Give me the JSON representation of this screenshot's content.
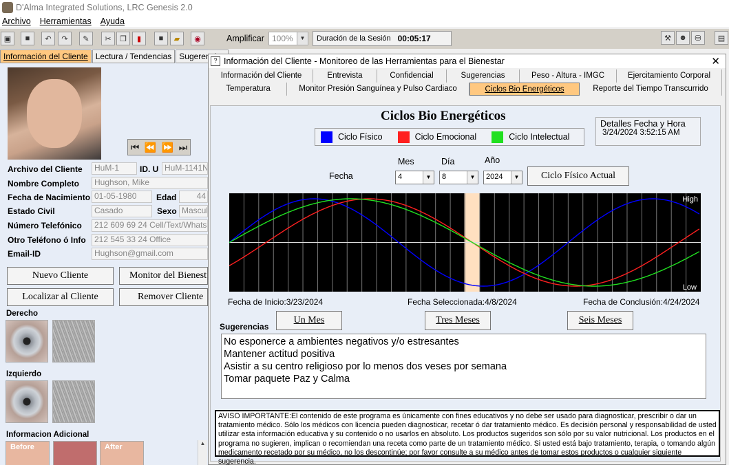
{
  "app": {
    "title": "D'Alma Integrated Solutions, LRC Genesis 2.0"
  },
  "menu": [
    "Archivo",
    "Herramientas",
    "Ayuda"
  ],
  "toolbar": {
    "amplify_label": "Amplificar",
    "amplify_value": "100%",
    "session_label": "Duración de la Sesión",
    "session_time": "00:05:17"
  },
  "left_tabs": [
    "Información del Cliente",
    "Lectura / Tendencias",
    "Sugerencias"
  ],
  "client": {
    "archive_label": "Archivo del Cliente",
    "archive_value": "HuM-1",
    "id_label": "ID. U",
    "id_value": "HuM-1141N",
    "name_label": "Nombre Completo",
    "name_value": "Hughson, Mike",
    "dob_label": "Fecha de Nacimiento",
    "dob_value": "01-05-1980",
    "age_label": "Edad",
    "age_value": "44",
    "civil_label": "Estado Civil",
    "civil_value": "Casado",
    "sex_label": "Sexo",
    "sex_value": "Mascul",
    "phone_label": "Número Telefónico",
    "phone_value": "212 609 69 24 Cell/Text/Whats",
    "phone2_label": "Otro Teléfono ó Info",
    "phone2_value": "212 545 33 24 Office",
    "email_label": "Email-ID",
    "email_value": "Hughson@gmail.com"
  },
  "left_buttons": {
    "new": "Nuevo Cliente",
    "monitor": "Monitor del Bienest",
    "locate": "Localizar al Cliente",
    "remove": "Remover Cliente"
  },
  "sections": {
    "right": "Derecho",
    "left": "Izquierdo",
    "extra": "Informacion Adicional"
  },
  "thumbs": [
    "Before",
    "",
    "After"
  ],
  "dialog": {
    "title": "Información del Cliente - Monitoreo de las Herramientas para el Bienestar",
    "tabs_row1": [
      "Información del Cliente",
      "Entrevista",
      "Confidencial",
      "Sugerencias",
      "Peso - Altura - IMGC",
      "Ejercitamiento Corporal"
    ],
    "tabs_row2": [
      "Temperatura",
      "Monitor Presión Sanguínea y Pulso Cardiaco",
      "Ciclos Bio Energéticos",
      "Reporte del Tiempo Transcurrido"
    ]
  },
  "legend": {
    "physical": "Ciclo Físico",
    "emotional": "Ciclo Emocional",
    "intellectual": "Ciclo Intelectual"
  },
  "colors": {
    "physical": "#0000ff",
    "emotional": "#ff2020",
    "intellectual": "#20e020",
    "selected_day": "#ffe0c0"
  },
  "datetime": {
    "label": "Detalles Fecha y Hora",
    "value": "3/24/2024 3:52:15 AM"
  },
  "date_inputs": {
    "fecha_label": "Fecha",
    "mes_label": "Mes",
    "dia_label": "Día",
    "ano_label": "Año",
    "mes": "4",
    "dia": "8",
    "ano": "2024",
    "current_button": "Ciclo Físico Actual"
  },
  "chart_info": {
    "start": "Fecha de Inicio:3/23/2024",
    "selected": "Fecha Seleccionada:4/8/2024",
    "end": "Fecha de Conclusión:4/24/2024"
  },
  "range_buttons": [
    "Un Mes",
    "Tres Meses",
    "Seis Meses"
  ],
  "suggestions_label": "Sugerencias",
  "suggestions": [
    "No esponerce a ambientes negativos y/o estresantes",
    "Mantener actitud positiva",
    "Asistir a su centro religioso por lo menos dos veses por semana",
    "Tomar paquete Paz y Calma"
  ],
  "aviso": "AVISO IMPORTANTE:El contenido de este programa es únicamente con fines educativos y no debe ser usado para diagnosticar, prescribir o dar un tratamiento médico. Sólo los médicos con licencia pueden diagnosticar, recetar ó dar tratamiento médico. Es decisión personal y responsabilidad de usted utilizar esta información educativa y su contenido o no usarlos en absoluto. Los productos sugeridos son sólo por su valor nutricional. Los productos en el programa no sugieren, implican o recomiendan una receta como parte de un tratamiento médico. Si usted está bajo tratamiento, terapia, o tomando algún medicamento recetado por su médico, no los descontinúe; por favor consulte a su médico antes de tomar estos productos o cualquier siguiente sugerencia.",
  "chart_data": {
    "type": "line",
    "title": "Ciclos Bio Energéticos",
    "x_range_days": [
      0,
      32
    ],
    "x_start_date": "3/23/2024",
    "x_end_date": "4/24/2024",
    "selected_day": 16,
    "ylim": [
      -1,
      1
    ],
    "y_tick_labels": [
      "Low",
      "High"
    ],
    "series": [
      {
        "name": "Ciclo Físico",
        "period": 23,
        "phase": 0.0,
        "values_note": "sin(2π(t+phase)/period)"
      },
      {
        "name": "Ciclo Emocional",
        "period": 28,
        "phase": 25.5
      },
      {
        "name": "Ciclo Intelectual",
        "period": 33,
        "phase": 0.0
      }
    ]
  }
}
